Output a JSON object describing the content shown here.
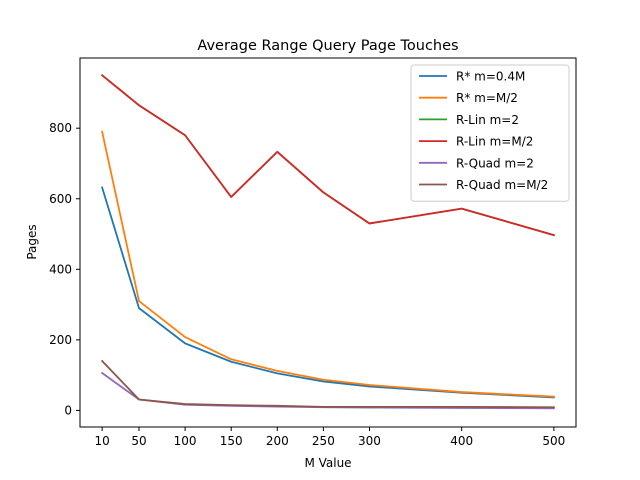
{
  "chart_data": {
    "type": "line",
    "title": "Average Range Query Page Touches",
    "xlabel": "M Value",
    "ylabel": "Pages",
    "x": [
      10,
      50,
      100,
      150,
      200,
      250,
      300,
      400,
      500
    ],
    "xticks": [
      10,
      50,
      100,
      150,
      200,
      250,
      300,
      400,
      500
    ],
    "yticks": [
      0,
      200,
      400,
      600,
      800
    ],
    "xlim": [
      -14,
      524
    ],
    "ylim": [
      -47,
      999
    ],
    "grid": false,
    "legend_position": "top-right",
    "series": [
      {
        "name": "R* m=0.4M",
        "color": "#1f77b4",
        "values": [
          632,
          290,
          190,
          138,
          105,
          82,
          68,
          50,
          37
        ]
      },
      {
        "name": "R* m=M/2",
        "color": "#ff7f0e",
        "values": [
          790,
          310,
          208,
          145,
          112,
          87,
          72,
          52,
          39
        ]
      },
      {
        "name": "R-Lin m=2",
        "color": "#2ca02c",
        "values": [
          950,
          865,
          780,
          605,
          733,
          618,
          530,
          572,
          497
        ]
      },
      {
        "name": "R-Lin m=M/2",
        "color": "#d62728",
        "values": [
          950,
          865,
          780,
          605,
          733,
          618,
          530,
          572,
          497
        ]
      },
      {
        "name": "R-Quad m=2",
        "color": "#9467bd",
        "values": [
          106,
          31,
          16,
          13,
          11,
          9,
          8,
          7,
          6
        ]
      },
      {
        "name": "R-Quad m=M/2",
        "color": "#8c564b",
        "values": [
          140,
          31,
          18,
          15,
          13,
          10,
          10,
          10,
          9
        ]
      }
    ]
  }
}
